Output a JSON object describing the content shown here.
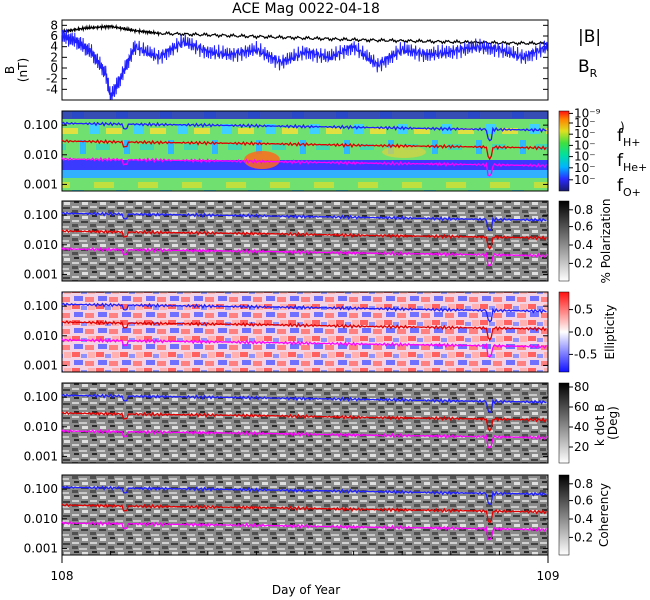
{
  "chart_data": [
    {
      "type": "line",
      "title": "ACE Mag 0022-04-18",
      "ylabel": "B (nT)",
      "xlabel": "Day of Year",
      "x_range": [
        108,
        109
      ],
      "x_ticks": [
        "108",
        "109"
      ],
      "ylim": [
        -6,
        9
      ],
      "y_ticks": [
        "8",
        "6",
        "4",
        "2",
        "0",
        "-2",
        "-4"
      ],
      "series": [
        {
          "name": "|B|",
          "color": "#000000",
          "x": [
            108.0,
            108.05,
            108.1,
            108.15,
            108.2,
            108.3,
            108.4,
            108.5,
            108.6,
            108.7,
            108.8,
            108.9,
            109.0
          ],
          "values": [
            6.8,
            7.5,
            7.8,
            7.0,
            6.5,
            6.2,
            5.9,
            5.6,
            5.3,
            5.1,
            4.9,
            4.7,
            4.6
          ]
        },
        {
          "name": "B_R",
          "color": "#1f1fff",
          "x": [
            108.0,
            108.03,
            108.06,
            108.09,
            108.1,
            108.12,
            108.15,
            108.2,
            108.25,
            108.3,
            108.35,
            108.4,
            108.45,
            108.5,
            108.55,
            108.6,
            108.65,
            108.7,
            108.75,
            108.8,
            108.85,
            108.9,
            108.95,
            109.0
          ],
          "values": [
            6.0,
            5.0,
            3.0,
            -1.0,
            -5.5,
            -2.0,
            4.0,
            2.0,
            5.0,
            3.0,
            2.5,
            3.5,
            1.0,
            3.0,
            2.0,
            4.0,
            0.5,
            3.5,
            2.5,
            3.0,
            4.0,
            3.5,
            2.0,
            4.0
          ]
        }
      ],
      "legend": [
        "|B|",
        "B",
        "R"
      ]
    },
    {
      "type": "heatmap",
      "ylabel": "",
      "y_ticks": [
        "0.100",
        "0.010",
        "0.001"
      ],
      "colorbar_ticks": [
        "10⁻⁹",
        "10⁻",
        "10⁻",
        "10⁻",
        "10⁻",
        "10⁻",
        "10⁻"
      ],
      "colorbar_extra": ")",
      "legend": [
        {
          "base": "f",
          "sub": "H+",
          "color": "#1f1fff"
        },
        {
          "base": "f",
          "sub": "He+",
          "color": "#e00000"
        },
        {
          "base": "f",
          "sub": "O+",
          "color": "#ff00ff"
        }
      ],
      "lines": [
        {
          "name": "f_H+",
          "color": "#1f1fff",
          "y_values": [
            0.115,
            0.105,
            0.095,
            0.085,
            0.075,
            0.068
          ]
        },
        {
          "name": "f_He+",
          "color": "#e00000",
          "y_values": [
            0.029,
            0.026,
            0.024,
            0.021,
            0.019,
            0.017
          ]
        },
        {
          "name": "f_O+",
          "color": "#ff00ff",
          "y_values": [
            0.0072,
            0.0066,
            0.006,
            0.0053,
            0.0048,
            0.0043
          ]
        }
      ],
      "line_x": [
        108.0,
        108.2,
        108.4,
        108.6,
        108.8,
        109.0
      ]
    },
    {
      "type": "heatmap",
      "ylabel": "",
      "y_ticks": [
        "0.100",
        "0.010",
        "0.001"
      ],
      "colorbar_label": "% Polarization",
      "colorbar_ticks": [
        "0.8",
        "0.6",
        "0.4",
        "0.2"
      ]
    },
    {
      "type": "heatmap",
      "ylabel": "",
      "y_ticks": [
        "0.100",
        "0.010",
        "0.001"
      ],
      "colorbar_label": "Ellipticity",
      "colorbar_ticks": [
        "0.5",
        "0.0",
        "-0.5"
      ]
    },
    {
      "type": "heatmap",
      "ylabel": "",
      "y_ticks": [
        "0.100",
        "0.010",
        "0.001"
      ],
      "colorbar_label": "k dot B (Deg)",
      "colorbar_label_lines": [
        "k dot B",
        "(Deg)"
      ],
      "colorbar_ticks": [
        "80",
        "60",
        "40",
        "20"
      ]
    },
    {
      "type": "heatmap",
      "ylabel": "",
      "y_ticks": [
        "0.100",
        "0.010",
        "0.001"
      ],
      "colorbar_label": "Coherency",
      "colorbar_ticks": [
        "0.8",
        "0.6",
        "0.4",
        "0.2"
      ]
    }
  ]
}
